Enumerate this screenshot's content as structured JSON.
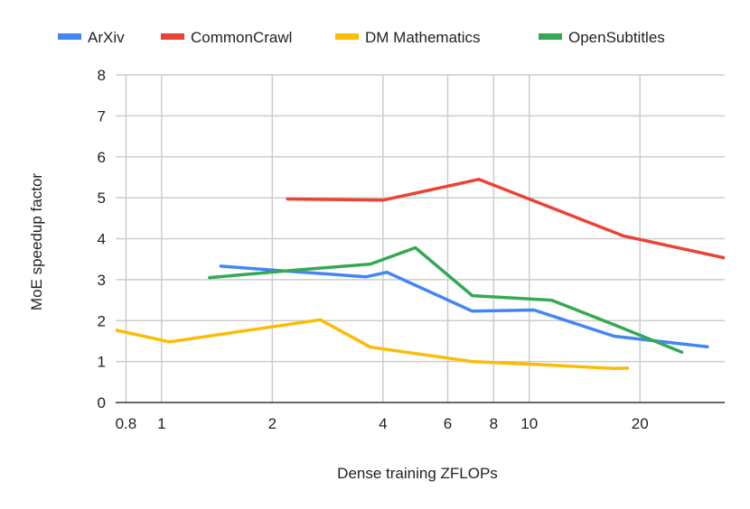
{
  "chart_data": {
    "type": "line",
    "title": "",
    "xlabel": "Dense training ZFLOPs",
    "ylabel": "MoE speedup factor",
    "x_scale": "log",
    "xlim": [
      0.75,
      34
    ],
    "ylim": [
      0,
      8
    ],
    "x_ticks": [
      0.8,
      1,
      2,
      4,
      6,
      8,
      10,
      20
    ],
    "x_tick_labels": [
      "0.8",
      "1",
      "2",
      "4",
      "6",
      "8",
      "10",
      "20"
    ],
    "y_ticks": [
      0,
      1,
      2,
      3,
      4,
      5,
      6,
      7,
      8
    ],
    "y_tick_labels": [
      "0",
      "1",
      "2",
      "3",
      "4",
      "5",
      "6",
      "7",
      "8"
    ],
    "grid": true,
    "legend_position": "top",
    "series": [
      {
        "name": "ArXiv",
        "color": "#4285f4",
        "points": [
          [
            1.45,
            3.33
          ],
          [
            2.1,
            3.22
          ],
          [
            3.6,
            3.07
          ],
          [
            4.1,
            3.18
          ],
          [
            7.0,
            2.23
          ],
          [
            10.3,
            2.26
          ],
          [
            17.0,
            1.62
          ],
          [
            30.5,
            1.36
          ]
        ]
      },
      {
        "name": "CommonCrawl",
        "color": "#ea4335",
        "points": [
          [
            2.2,
            4.97
          ],
          [
            4.0,
            4.94
          ],
          [
            7.3,
            5.45
          ],
          [
            18.0,
            4.07
          ],
          [
            34.0,
            3.53
          ]
        ]
      },
      {
        "name": "DM Mathematics",
        "color": "#fbbc04",
        "points": [
          [
            0.75,
            1.77
          ],
          [
            1.05,
            1.48
          ],
          [
            2.7,
            2.02
          ],
          [
            3.7,
            1.35
          ],
          [
            7.0,
            1.0
          ],
          [
            11.0,
            0.92
          ],
          [
            17.0,
            0.83
          ],
          [
            18.5,
            0.84
          ]
        ]
      },
      {
        "name": "OpenSubtitles",
        "color": "#34a853",
        "points": [
          [
            1.35,
            3.05
          ],
          [
            2.3,
            3.23
          ],
          [
            3.7,
            3.38
          ],
          [
            4.9,
            3.78
          ],
          [
            7.0,
            2.61
          ],
          [
            11.5,
            2.5
          ],
          [
            17.0,
            1.9
          ],
          [
            26.0,
            1.23
          ]
        ]
      }
    ]
  }
}
